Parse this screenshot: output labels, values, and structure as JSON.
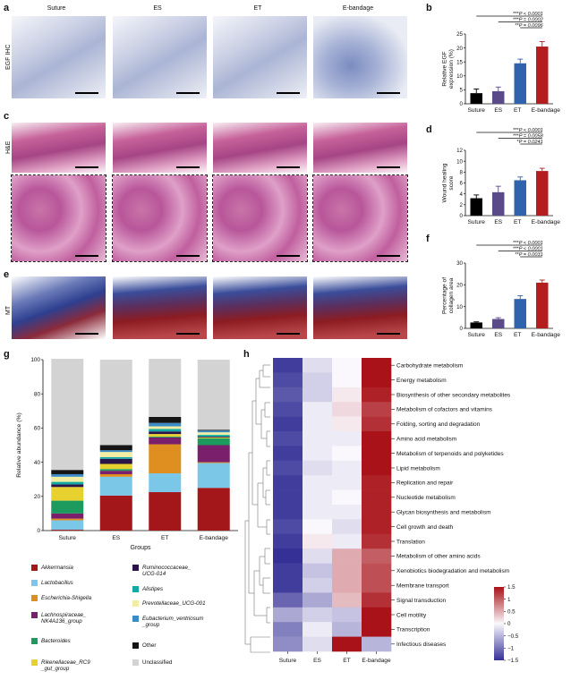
{
  "panels": {
    "a": "a",
    "b": "b",
    "c": "c",
    "d": "d",
    "e": "e",
    "f": "f",
    "g": "g",
    "h": "h"
  },
  "columns": [
    "Suture",
    "ES",
    "ET",
    "E-bandage"
  ],
  "row_labels": {
    "a": "EGF IHC",
    "c": "H&E",
    "e": "MT"
  },
  "chart_data": [
    {
      "id": "b",
      "type": "bar",
      "categories": [
        "Suture",
        "ES",
        "ET",
        "E-bandage"
      ],
      "values": [
        3.8,
        4.5,
        14.5,
        20.5
      ],
      "errors": [
        1.5,
        1.5,
        1.5,
        1.8
      ],
      "colors": [
        "#000000",
        "#5b4a8a",
        "#2f63ad",
        "#b41e1e"
      ],
      "ylabel": "Relative EGF expression (%)",
      "ylim": [
        0,
        25
      ],
      "yticks": [
        0,
        5,
        10,
        15,
        20,
        25
      ],
      "sig": [
        {
          "from": 0,
          "to": 3,
          "stars": "***",
          "p": "P < 0.0001"
        },
        {
          "from": 1,
          "to": 3,
          "stars": "***",
          "p": "P = 0.0002"
        },
        {
          "from": 2,
          "to": 3,
          "stars": "**",
          "p": "P = 0.0096"
        }
      ]
    },
    {
      "id": "d",
      "type": "bar",
      "categories": [
        "Suture",
        "ES",
        "ET",
        "E-bandage"
      ],
      "values": [
        3.2,
        4.3,
        6.5,
        8.2
      ],
      "errors": [
        0.6,
        1.1,
        0.6,
        0.5
      ],
      "colors": [
        "#000000",
        "#5b4a8a",
        "#2f63ad",
        "#b41e1e"
      ],
      "ylabel": "Wound healing score",
      "ylim": [
        0,
        12
      ],
      "yticks": [
        0,
        2,
        4,
        6,
        8,
        10,
        12
      ],
      "sig": [
        {
          "from": 0,
          "to": 3,
          "stars": "***",
          "p": "P < 0.0001"
        },
        {
          "from": 1,
          "to": 3,
          "stars": "***",
          "p": "P = 0.0058"
        },
        {
          "from": 2,
          "to": 3,
          "stars": "*",
          "p": "P = 0.0241"
        }
      ]
    },
    {
      "id": "f",
      "type": "bar",
      "categories": [
        "Suture",
        "ES",
        "ET",
        "E-bandage"
      ],
      "values": [
        2.7,
        4.3,
        13.5,
        21
      ],
      "errors": [
        0.3,
        0.6,
        1.5,
        1.2
      ],
      "colors": [
        "#000000",
        "#5b4a8a",
        "#2f63ad",
        "#b41e1e"
      ],
      "ylabel": "Percentage of collagen area",
      "ylim": [
        0,
        30
      ],
      "yticks": [
        0,
        10,
        20,
        30
      ],
      "sig": [
        {
          "from": 0,
          "to": 3,
          "stars": "***",
          "p": "P < 0.0001"
        },
        {
          "from": 1,
          "to": 3,
          "stars": "***",
          "p": "P < 0.0001"
        },
        {
          "from": 2,
          "to": 3,
          "stars": "**",
          "p": "P = 0.0031"
        }
      ]
    },
    {
      "id": "g",
      "type": "stacked_bar",
      "xlabel": "Groups",
      "ylabel": "Relative abundance (%)",
      "ylim": [
        0,
        100
      ],
      "yticks": [
        0,
        20,
        40,
        60,
        80,
        100
      ],
      "categories": [
        "Suture",
        "ES",
        "ET",
        "E-bandage"
      ],
      "series": [
        {
          "name": "Akkermansia",
          "color": "#a3171a",
          "values": [
            0.5,
            20.5,
            22.5,
            25
          ]
        },
        {
          "name": "Lactobacillus",
          "color": "#7ac7e8",
          "values": [
            5.5,
            11,
            11,
            14.5
          ]
        },
        {
          "name": "Escherichia-Shigella",
          "color": "#de8f1f",
          "values": [
            1,
            1.5,
            17,
            0.5
          ]
        },
        {
          "name": "Lachnospiraceae_ NK4A136_group",
          "color": "#7a1f6b",
          "values": [
            3,
            2,
            4,
            10
          ]
        },
        {
          "name": "Bacteroides",
          "color": "#1d9a5e",
          "values": [
            7.5,
            1,
            0.5,
            4
          ]
        },
        {
          "name": "Rikenellaceae_RC9 _gut_group",
          "color": "#e6d12e",
          "values": [
            8,
            3,
            1.5,
            0.5
          ]
        },
        {
          "name": "Ruminococcaceae_ UCG-014",
          "color": "#2b1448",
          "values": [
            1.5,
            3,
            1.5,
            0.5
          ]
        },
        {
          "name": "Alistipes",
          "color": "#14a8a3",
          "values": [
            1.5,
            1,
            1.5,
            1
          ]
        },
        {
          "name": "Prevotellaceae_UCG-001",
          "color": "#f1eda3",
          "values": [
            3,
            3,
            1.5,
            1.5
          ]
        },
        {
          "name": "Eubacterium_ventriosum _group",
          "color": "#3b8cc6",
          "values": [
            1.5,
            1,
            2,
            1
          ]
        },
        {
          "name": "Other",
          "color": "#151515",
          "values": [
            2.5,
            3,
            3.5,
            0.5
          ]
        },
        {
          "name": "Unclassified",
          "color": "#d3d3d3",
          "values": [
            65,
            50,
            34,
            41
          ]
        }
      ],
      "legend_order": [
        0,
        6,
        1,
        7,
        2,
        8,
        3,
        9,
        4,
        10,
        5,
        11
      ]
    },
    {
      "id": "h",
      "type": "heatmap",
      "columns": [
        "Suture",
        "ES",
        "ET",
        "E-bandage"
      ],
      "rows": [
        "Carbohydrate metabolism",
        "Energy metabolism",
        "Biosynthesis of other secondary metabolites",
        "Metabolism of cofactors and vitamins",
        "Folding, sorting and degradation",
        "Amino acid metabolism",
        "Metabolism of terpenoids and polyketides",
        "Lipid metabolism",
        "Replication and repair",
        "Nucleotide metabolism",
        "Glycan biosynthesis and metabolism",
        "Cell growth and death",
        "Translation",
        "Metabolism of other amino acids",
        "Xenobiotics biodegradation and metabolism",
        "Membrane transport",
        "Signal transduction",
        "Cell motility",
        "Transcription",
        "Infectious diseases"
      ],
      "values": [
        [
          -1.4,
          -0.2,
          0.0,
          1.5
        ],
        [
          -1.3,
          -0.3,
          0.0,
          1.5
        ],
        [
          -1.2,
          -0.3,
          0.1,
          1.4
        ],
        [
          -1.3,
          -0.1,
          0.2,
          1.2
        ],
        [
          -1.4,
          -0.1,
          0.1,
          1.3
        ],
        [
          -1.3,
          -0.1,
          -0.1,
          1.5
        ],
        [
          -1.4,
          -0.1,
          0.0,
          1.5
        ],
        [
          -1.3,
          -0.2,
          -0.1,
          1.5
        ],
        [
          -1.4,
          -0.1,
          -0.1,
          1.4
        ],
        [
          -1.4,
          -0.1,
          0.0,
          1.4
        ],
        [
          -1.4,
          -0.1,
          -0.1,
          1.4
        ],
        [
          -1.3,
          0.0,
          -0.2,
          1.4
        ],
        [
          -1.4,
          0.1,
          -0.1,
          1.3
        ],
        [
          -1.5,
          -0.2,
          0.5,
          1.0
        ],
        [
          -1.4,
          -0.4,
          0.5,
          1.1
        ],
        [
          -1.4,
          -0.3,
          0.5,
          1.1
        ],
        [
          -1.1,
          -0.6,
          0.4,
          1.3
        ],
        [
          -0.6,
          -0.3,
          -0.4,
          1.5
        ],
        [
          -0.9,
          -0.1,
          -0.5,
          1.5
        ],
        [
          -0.8,
          -0.2,
          1.5,
          -0.5
        ]
      ],
      "colorbar": {
        "ticks": [
          1.5,
          1,
          0.5,
          0,
          -0.5,
          -1,
          -1.5
        ],
        "labels": [
          "1.5",
          "1",
          "0.5",
          "0",
          "−0.5",
          "−1",
          "−1.5"
        ]
      }
    }
  ]
}
